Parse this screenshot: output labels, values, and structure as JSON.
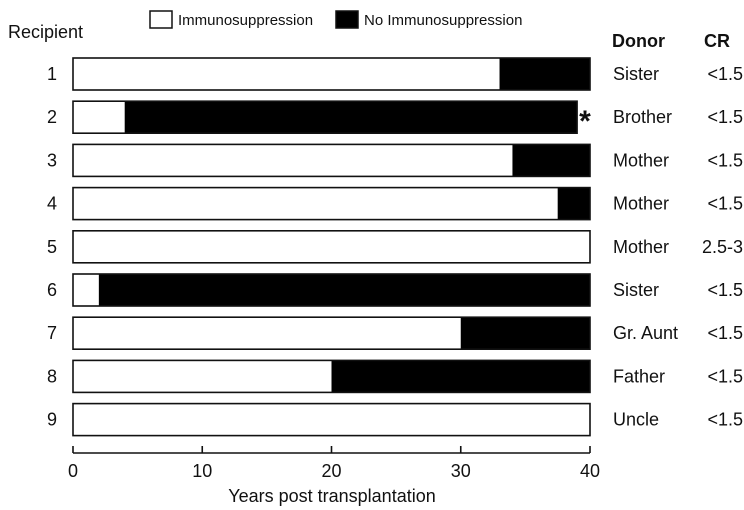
{
  "chart_data": {
    "type": "bar",
    "orientation": "horizontal",
    "stacked": true,
    "title": "",
    "xlabel": "Years post transplantation",
    "xlim": [
      0,
      40
    ],
    "xticks": [
      0,
      10,
      20,
      30,
      40
    ],
    "row_header": "Recipient",
    "donor_header": "Donor",
    "cr_header": "CR",
    "legend": {
      "placement": "top",
      "entries": [
        {
          "name": "Immunosuppression",
          "color": "#ffffff"
        },
        {
          "name": "No Immunosuppression",
          "color": "#000000"
        }
      ]
    },
    "colors": {
      "immunosuppression": "#ffffff",
      "no_immunosuppression": "#000000",
      "outline": "#111111"
    },
    "asterisk_text": "*",
    "rows": [
      {
        "recipient": "1",
        "donor": "Sister",
        "cr": "<1.5",
        "immunosuppression": 33,
        "no_immunosuppression": 7,
        "marker": false
      },
      {
        "recipient": "2",
        "donor": "Brother",
        "cr": "<1.5",
        "immunosuppression": 4,
        "no_immunosuppression": 35,
        "marker": true
      },
      {
        "recipient": "3",
        "donor": "Mother",
        "cr": "<1.5",
        "immunosuppression": 34,
        "no_immunosuppression": 6,
        "marker": false
      },
      {
        "recipient": "4",
        "donor": "Mother",
        "cr": "<1.5",
        "immunosuppression": 37.5,
        "no_immunosuppression": 2.5,
        "marker": false
      },
      {
        "recipient": "5",
        "donor": "Mother",
        "cr": "2.5-3",
        "immunosuppression": 40,
        "no_immunosuppression": 0,
        "marker": false
      },
      {
        "recipient": "6",
        "donor": "Sister",
        "cr": "<1.5",
        "immunosuppression": 2,
        "no_immunosuppression": 38,
        "marker": false
      },
      {
        "recipient": "7",
        "donor": "Gr. Aunt",
        "cr": "<1.5",
        "immunosuppression": 30,
        "no_immunosuppression": 10,
        "marker": false
      },
      {
        "recipient": "8",
        "donor": "Father",
        "cr": "<1.5",
        "immunosuppression": 20,
        "no_immunosuppression": 20,
        "marker": false
      },
      {
        "recipient": "9",
        "donor": "Uncle",
        "cr": "<1.5",
        "immunosuppression": 40,
        "no_immunosuppression": 0,
        "marker": false
      }
    ]
  }
}
